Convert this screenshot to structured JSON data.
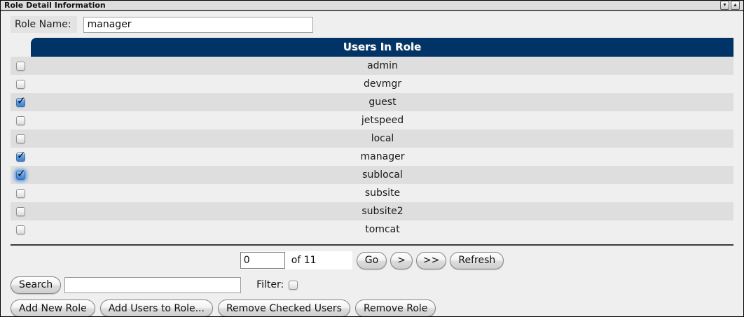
{
  "window": {
    "title": "Role Detail Information",
    "controls": {
      "minimize_glyph": "▼",
      "maximize_glyph": "▲"
    }
  },
  "form": {
    "role_name_label": "Role Name:",
    "role_name_value": "manager"
  },
  "table": {
    "header": "Users In Role",
    "rows": [
      {
        "name": "admin",
        "checked": false,
        "focused": false
      },
      {
        "name": "devmgr",
        "checked": false,
        "focused": false
      },
      {
        "name": "guest",
        "checked": true,
        "focused": false
      },
      {
        "name": "jetspeed",
        "checked": false,
        "focused": false
      },
      {
        "name": "local",
        "checked": false,
        "focused": false
      },
      {
        "name": "manager",
        "checked": true,
        "focused": false
      },
      {
        "name": "sublocal",
        "checked": true,
        "focused": true
      },
      {
        "name": "subsite",
        "checked": false,
        "focused": false
      },
      {
        "name": "subsite2",
        "checked": false,
        "focused": false
      },
      {
        "name": "tomcat",
        "checked": false,
        "focused": false
      }
    ]
  },
  "pagination": {
    "page_value": "0",
    "of_label": "of 11",
    "go_label": "Go",
    "next_label": ">",
    "last_label": ">>",
    "refresh_label": "Refresh"
  },
  "search": {
    "button_label": "Search",
    "input_value": "",
    "filter_label": "Filter:",
    "filter_checked": false
  },
  "actions": {
    "add_new_role": "Add New Role",
    "add_users_to_role": "Add Users to Role...",
    "remove_checked_users": "Remove Checked Users",
    "remove_role": "Remove Role"
  },
  "colors": {
    "header_bg": "#003366",
    "header_text": "#ffffff",
    "row_odd": "#dedede",
    "row_even": "#efefef",
    "titlebar_bg": "#dedede",
    "content_bg": "#efefef",
    "checkbox_checked_blue": "#3b7fd4",
    "focus_glow": "#62a0ea"
  }
}
